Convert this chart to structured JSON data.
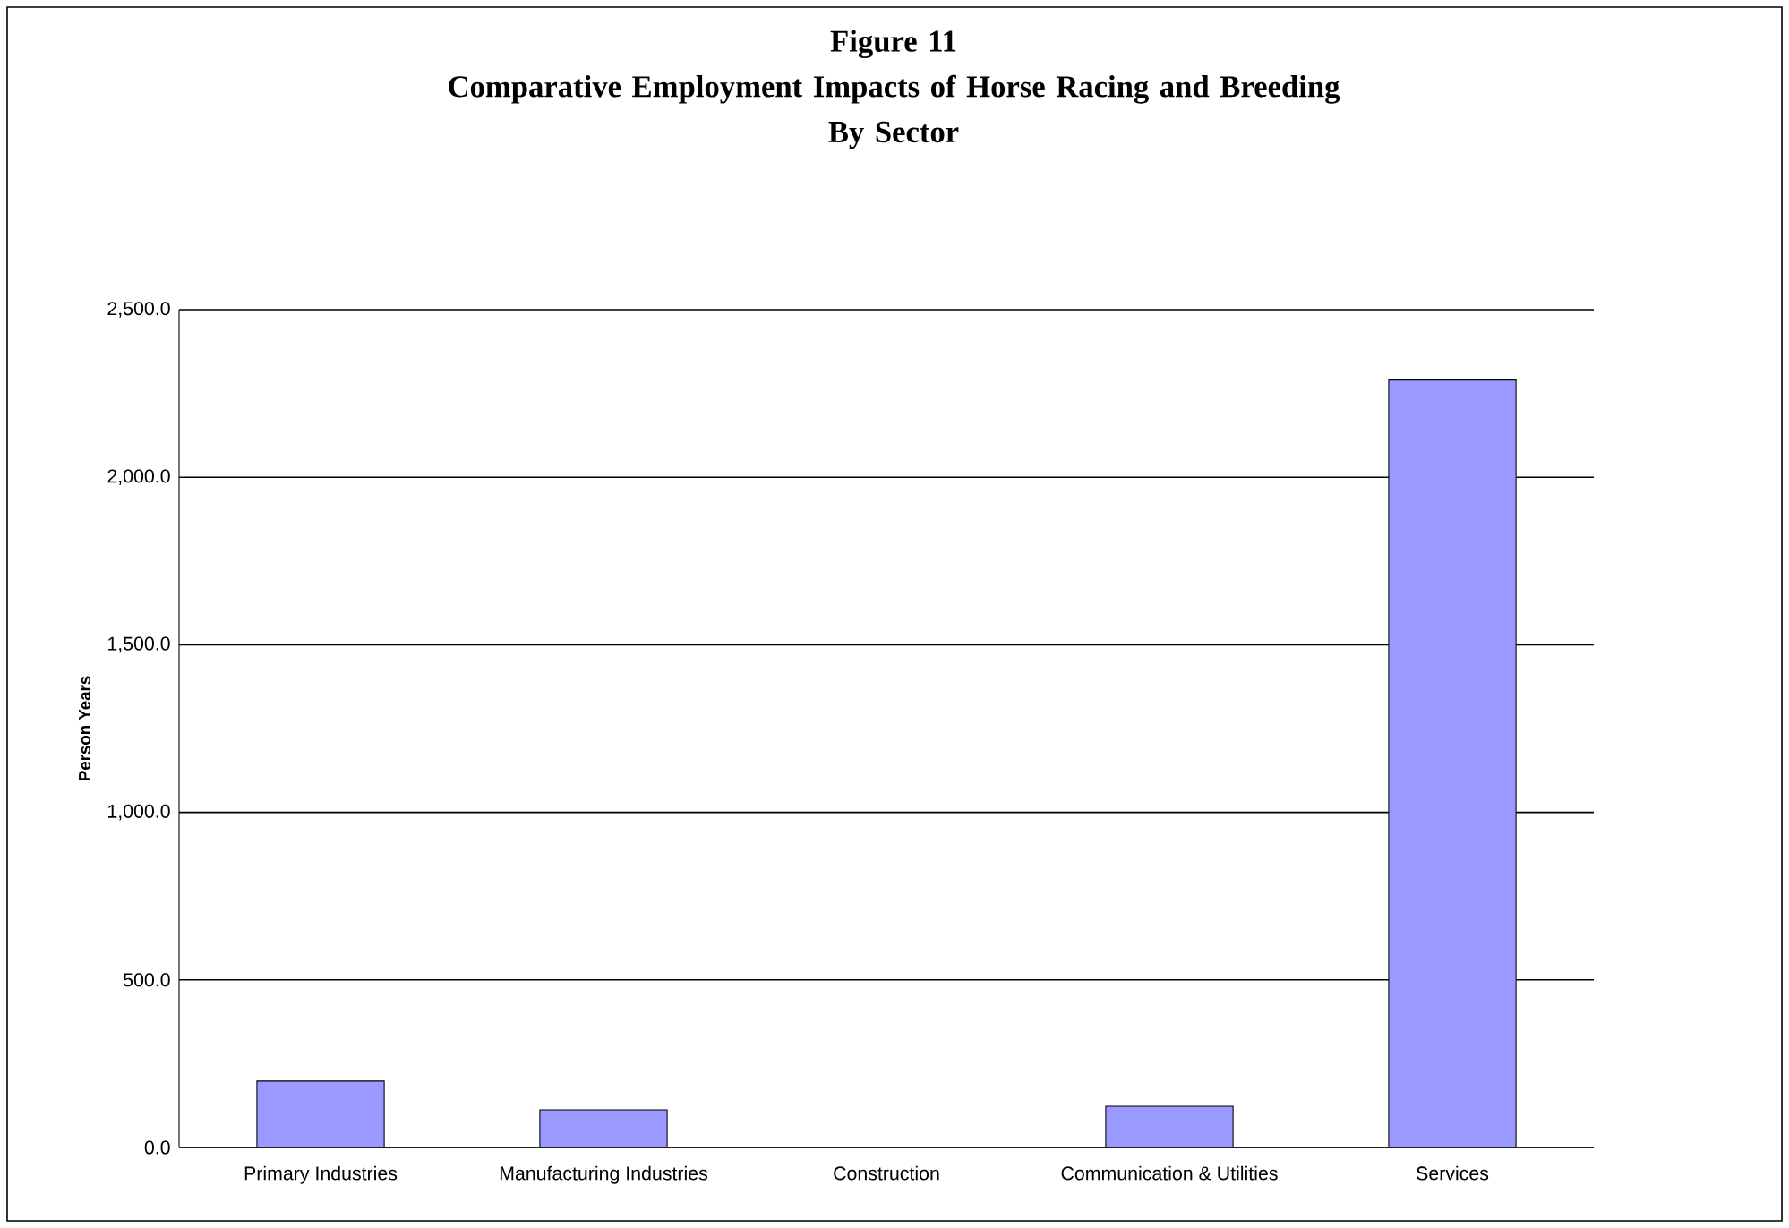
{
  "chart_data": {
    "type": "bar",
    "title": "Figure 11\nComparative Employment Impacts of Horse Racing and Breeding\nBy Sector",
    "ylabel": "Person Years",
    "categories": [
      "Primary Industries",
      "Manufacturing Industries",
      "Construction",
      "Communication & Utilities",
      "Services"
    ],
    "values": [
      198,
      112,
      0,
      123,
      2290
    ],
    "color": "#9999ff",
    "ylim": [
      0,
      2500
    ],
    "yticks": [
      {
        "value": 0,
        "label": "0.0"
      },
      {
        "value": 500,
        "label": "500.0"
      },
      {
        "value": 1000,
        "label": "1,000.0"
      },
      {
        "value": 1500,
        "label": "1,500.0"
      },
      {
        "value": 2000,
        "label": "2,000.0"
      },
      {
        "value": 2500,
        "label": "2,500.0"
      }
    ],
    "grid": "y"
  }
}
